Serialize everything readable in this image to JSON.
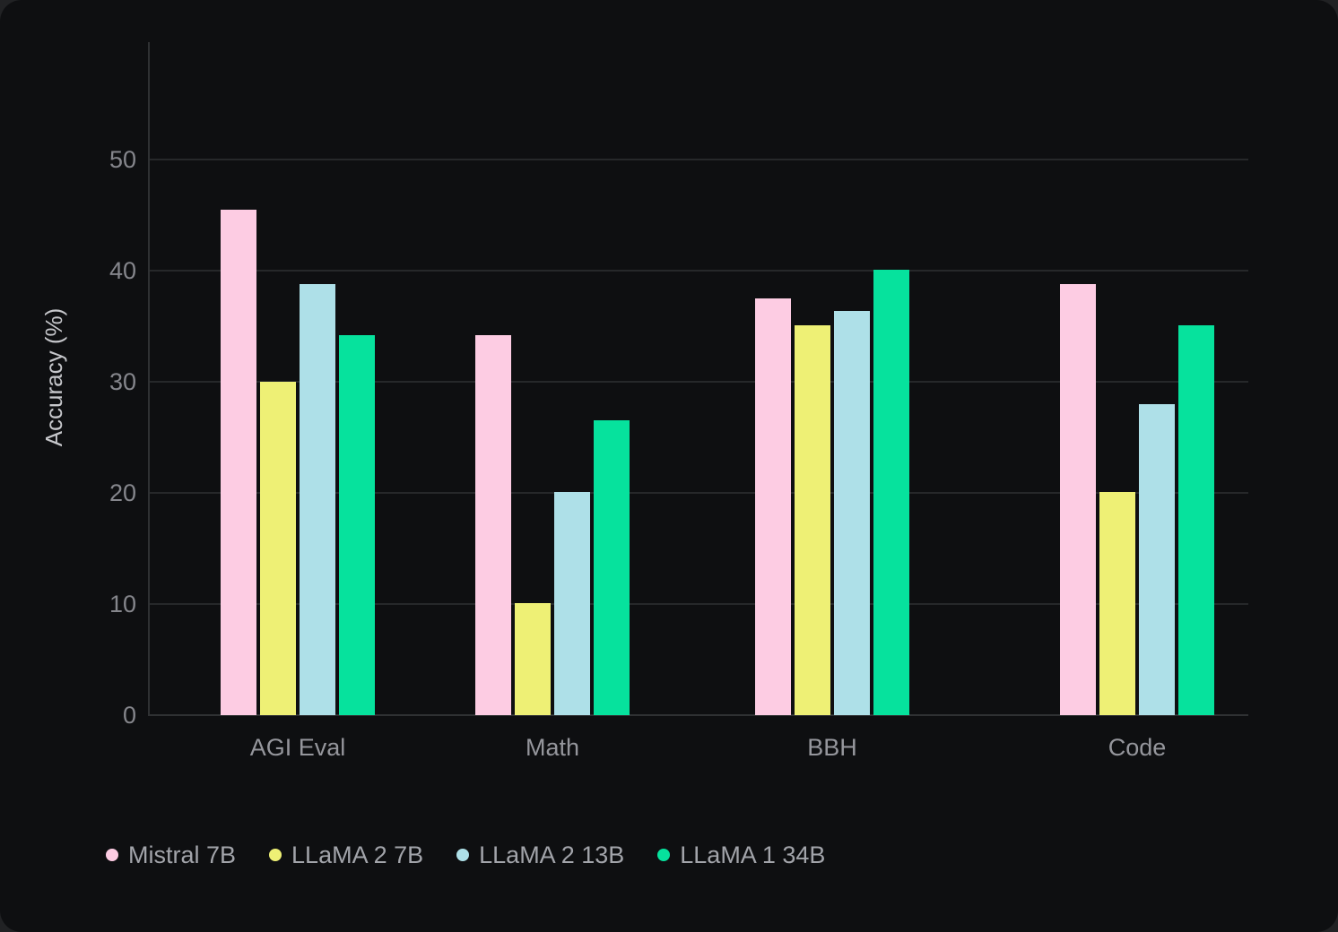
{
  "colors": {
    "page_background": "#212224",
    "panel_background": "#0e0f11",
    "gridline": "#26282a",
    "axis_line": "#2f3133",
    "tick_label": "#85868c",
    "category_label": "#95969c",
    "axis_title": "#c6c7cb",
    "legend_label": "#a2a4aa"
  },
  "chart_data": {
    "type": "bar",
    "title": "",
    "xlabel": "",
    "ylabel": "Accuracy (%)",
    "ylim": [
      0,
      60.5
    ],
    "yticks": [
      0,
      10,
      20,
      30,
      40,
      50
    ],
    "grid": true,
    "legend_position": "bottom-left",
    "categories": [
      "AGI Eval",
      "Math",
      "BBH",
      "Code"
    ],
    "series": [
      {
        "name": "Mistral 7B",
        "color": "#fdcce3",
        "values": [
          45.5,
          34.2,
          37.5,
          38.8
        ]
      },
      {
        "name": "LLaMA 2 7B",
        "color": "#eef075",
        "values": [
          30.0,
          10.1,
          35.1,
          20.1
        ]
      },
      {
        "name": "LLaMA 2 13B",
        "color": "#aee0e8",
        "values": [
          38.8,
          20.1,
          36.4,
          28.0
        ]
      },
      {
        "name": "LLaMA 1 34B",
        "color": "#06e29d",
        "values": [
          34.2,
          26.5,
          40.1,
          35.1
        ]
      }
    ]
  }
}
